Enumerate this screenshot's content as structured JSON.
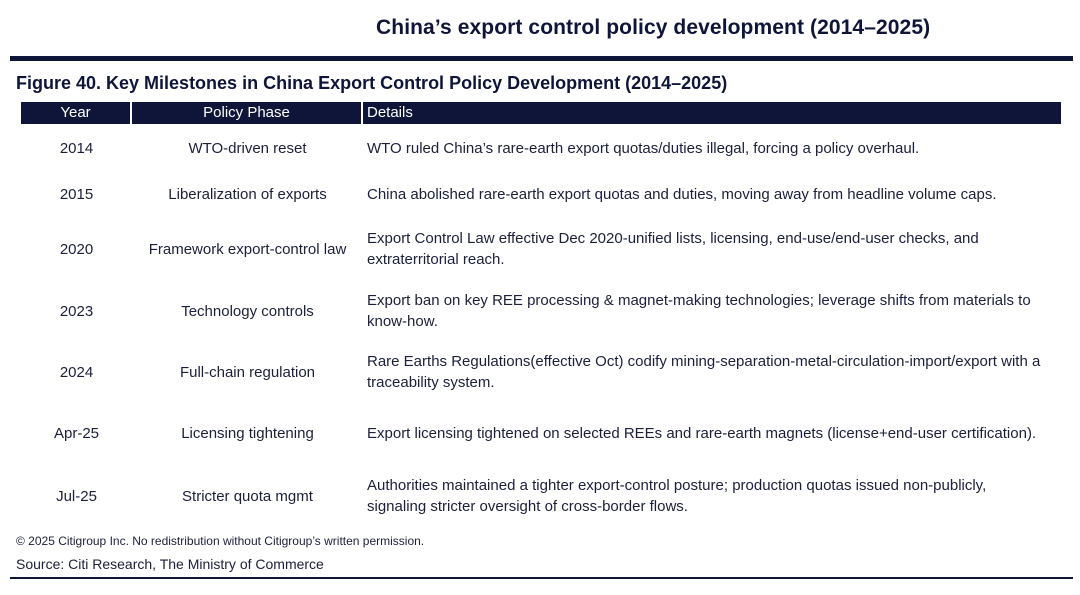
{
  "header": {
    "page_title": "China’s export control policy development (2014–2025)"
  },
  "figure": {
    "title": "Figure 40. Key Milestones in China Export Control Policy Development (2014–2025)"
  },
  "table": {
    "columns": [
      "Year",
      "Policy Phase",
      "Details"
    ],
    "rows": [
      {
        "year": "2014",
        "phase": "WTO-driven reset",
        "details": "WTO ruled China’s rare-earth export quotas/duties illegal, forcing a policy overhaul."
      },
      {
        "year": "2015",
        "phase": "Liberalization of exports",
        "details": "China abolished rare-earth export quotas and duties, moving away from headline volume caps."
      },
      {
        "year": "2020",
        "phase": "Framework export-control law",
        "details": "Export Control Law effective Dec 2020-unified lists, licensing, end-use/end-user checks, and extraterritorial reach."
      },
      {
        "year": "2023",
        "phase": "Technology controls",
        "details": "Export ban on key REE processing & magnet-making technologies; leverage shifts from materials to know-how."
      },
      {
        "year": "2024",
        "phase": "Full-chain regulation",
        "details": "Rare Earths Regulations(effective Oct) codify mining-separation-metal-circulation-import/export with a traceability system."
      },
      {
        "year": "Apr-25",
        "phase": "Licensing tightening",
        "details": "Export licensing tightened on selected REEs and rare-earth magnets (license+end-user certification)."
      },
      {
        "year": "Jul-25",
        "phase": "Stricter quota mgmt",
        "details": "Authorities maintained a tighter export-control posture; production quotas issued non-publicly, signaling stricter oversight of cross-border flows."
      }
    ]
  },
  "footer": {
    "copyright": "© 2025 Citigroup Inc. No redistribution without Citigroup’s written permission.",
    "source": "Source: Citi Research, The Ministry of Commerce"
  }
}
